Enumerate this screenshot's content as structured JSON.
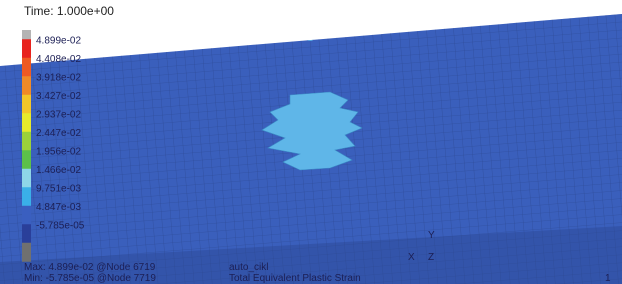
{
  "header": {
    "time": "Time: 1.000e+00"
  },
  "legend": {
    "labels": [
      "4.899e-02",
      "4.408e-02",
      "3.918e-02",
      "3.427e-02",
      "2.937e-02",
      "2.447e-02",
      "1.956e-02",
      "1.466e-02",
      "9.751e-03",
      "4.847e-03",
      "-5.785e-05"
    ],
    "colors": [
      "#b4b4b4",
      "#e8231e",
      "#ef5a23",
      "#f08a28",
      "#f2c62a",
      "#e6ea2c",
      "#9bd13a",
      "#5cc04a",
      "#8ed6e8",
      "#3ab0e8",
      "#3a5fc0",
      "#2a3f9a",
      "#707070"
    ]
  },
  "triad": {
    "y": "Y",
    "x": "X",
    "z": "Z"
  },
  "footer": {
    "max": "Max:  4.899e-02 @Node  6719",
    "min": "Min:  -5.785e-05 @Node  7719",
    "case": "auto_cikl",
    "quantity": "Total Equivalent Plastic Strain",
    "page": "1"
  }
}
